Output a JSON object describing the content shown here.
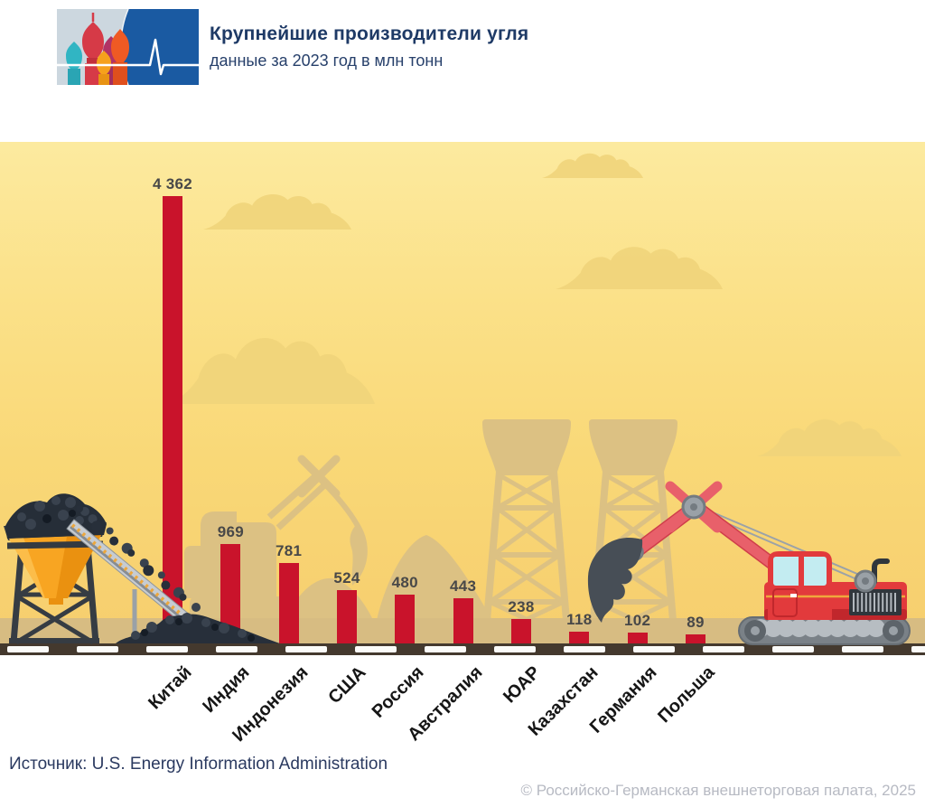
{
  "header": {
    "title": "Крупнейшие производители угля",
    "subtitle": "данные за 2023 год в млн тонн",
    "logo": "chamber-logo-with-heartbeat-and-cathedral-domes"
  },
  "chart_data": {
    "type": "bar",
    "title": "Крупнейшие производители угля",
    "subtitle": "данные за 2023 год в млн тонн",
    "unit": "млн тонн",
    "year": "2023",
    "categories": [
      "Китай",
      "Индия",
      "Индонезия",
      "США",
      "Россия",
      "Австралия",
      "ЮАР",
      "Казахстан",
      "Германия",
      "Польша"
    ],
    "values": [
      4362,
      969,
      781,
      524,
      480,
      443,
      238,
      118,
      102,
      89
    ],
    "value_labels": [
      "4 362",
      "969",
      "781",
      "524",
      "480",
      "443",
      "238",
      "118",
      "102",
      "89"
    ],
    "ylim": [
      0,
      4362
    ],
    "grid": false,
    "legend": "none",
    "bar_color": "#c9132b"
  },
  "footer": {
    "source": "Источник: U.S. Energy Information Administration",
    "copyright": "© Российско-Германская внешнеторговая палата, 2025"
  },
  "scene": {
    "decorations": [
      "clouds",
      "cooling-towers",
      "excavator-silhouette",
      "coal-hopper-tower",
      "conveyor-belt",
      "coal-pile",
      "crane-excavator",
      "road-with-dashes"
    ],
    "colors": {
      "bar": "#c9132b",
      "sky_top": "#fcea9f",
      "sky_bottom": "#f6cd6d",
      "silhouette_tan": "#dcc183",
      "cloud": "#f0d47b",
      "ground": "#d7bc82",
      "road": "#44392e",
      "road_dash": "#fbfbf9",
      "coal": "#272f3a",
      "machine_red": "#e23a3c",
      "boom_red": "#e8606a",
      "hopper_orange": "#f8a522",
      "steel_gray": "#9aa1a7",
      "logo_blue": "#1a5aa2",
      "title_navy": "#1e3a66",
      "copyright_gray": "#b7bac3"
    }
  }
}
